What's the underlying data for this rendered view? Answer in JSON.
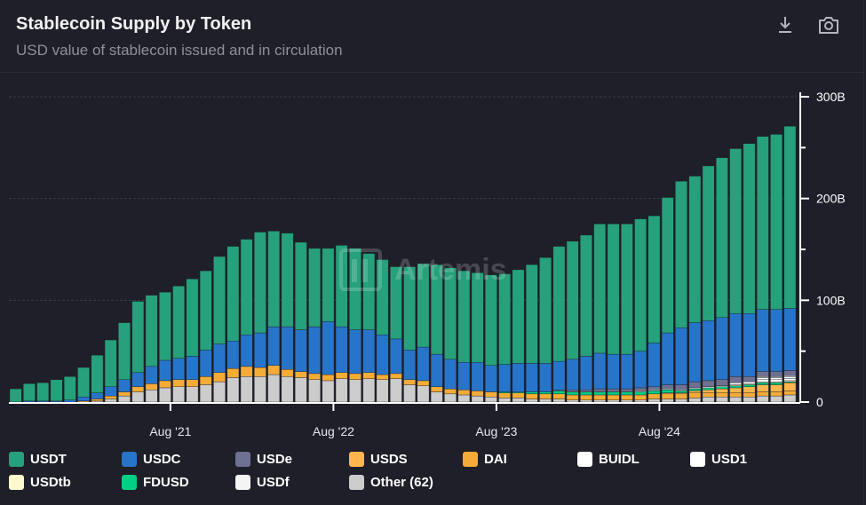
{
  "header": {
    "title": "Stablecoin Supply by Token",
    "subtitle": "USD value of stablecoin issued and in circulation"
  },
  "toolbar": {
    "download_icon": "download-icon",
    "camera_icon": "camera-icon"
  },
  "watermark": "Artemis",
  "chart_data": {
    "type": "bar",
    "stacked": true,
    "title": "Stablecoin Supply by Token",
    "subtitle": "USD value of stablecoin issued and in circulation",
    "xlabel": "",
    "ylabel": "",
    "ylim": [
      0,
      300
    ],
    "y_unit": "B",
    "y_ticks": [
      "0",
      "100B",
      "200B",
      "300B"
    ],
    "x_ticks": [
      "Aug '21",
      "Aug '22",
      "Aug '23",
      "Aug '24"
    ],
    "x_tick_index": [
      11,
      23,
      35,
      47
    ],
    "grid": true,
    "legend_position": "bottom",
    "categories": [
      "Sep '20",
      "Oct '20",
      "Nov '20",
      "Dec '20",
      "Jan '21",
      "Feb '21",
      "Mar '21",
      "Apr '21",
      "May '21",
      "Jun '21",
      "Jul '21",
      "Aug '21",
      "Sep '21",
      "Oct '21",
      "Nov '21",
      "Dec '21",
      "Jan '22",
      "Feb '22",
      "Mar '22",
      "Apr '22",
      "May '22",
      "Jun '22",
      "Jul '22",
      "Aug '22",
      "Sep '22",
      "Oct '22",
      "Nov '22",
      "Dec '22",
      "Jan '23",
      "Feb '23",
      "Mar '23",
      "Apr '23",
      "May '23",
      "Jun '23",
      "Jul '23",
      "Aug '23",
      "Sep '23",
      "Oct '23",
      "Nov '23",
      "Dec '23",
      "Jan '24",
      "Feb '24",
      "Mar '24",
      "Apr '24",
      "May '24",
      "Jun '24",
      "Jul '24",
      "Aug '24",
      "Sep '24",
      "Oct '24",
      "Nov '24",
      "Dec '24",
      "Jan '25",
      "Feb '25",
      "Mar '25",
      "Apr '25",
      "May '25",
      "Jun '25"
    ],
    "series": [
      {
        "name": "Other (62)",
        "color": "#cccccc",
        "values": [
          0,
          0,
          0,
          0,
          0,
          0,
          1,
          3,
          6,
          10,
          12,
          14,
          15,
          15,
          17,
          20,
          24,
          25,
          25,
          27,
          25,
          24,
          22,
          21,
          23,
          22,
          23,
          22,
          23,
          17,
          16,
          10,
          8,
          7,
          6,
          5,
          4,
          4,
          3,
          3,
          3,
          2,
          2,
          2,
          2,
          2,
          2,
          3,
          3,
          3,
          4,
          5,
          5,
          5,
          5,
          6,
          6,
          7
        ]
      },
      {
        "name": "DAI",
        "color": "#f5ac37",
        "values": [
          0,
          0,
          0,
          0,
          0,
          1,
          2,
          3,
          4,
          5,
          6,
          7,
          7,
          7,
          8,
          9,
          9,
          10,
          9,
          9,
          7,
          6,
          6,
          6,
          6,
          6,
          6,
          5,
          5,
          5,
          5,
          5,
          5,
          5,
          5,
          5,
          5,
          5,
          5,
          5,
          5,
          5,
          5,
          5,
          5,
          5,
          5,
          5,
          5,
          5,
          5,
          4,
          4,
          4,
          4,
          4,
          4,
          4
        ]
      },
      {
        "name": "USDS",
        "color": "#ffb74d",
        "values": [
          0,
          0,
          0,
          0,
          0,
          0,
          0,
          0,
          0,
          0,
          0,
          0,
          0,
          0,
          0,
          0,
          0,
          0,
          0,
          0,
          0,
          0,
          0,
          0,
          0,
          0,
          0,
          0,
          0,
          0,
          0,
          0,
          0,
          0,
          0,
          0,
          0,
          0,
          0,
          0,
          0,
          0,
          0,
          0,
          0,
          0,
          0,
          0,
          1,
          1,
          2,
          3,
          4,
          5,
          6,
          7,
          7,
          8
        ]
      },
      {
        "name": "FDUSD",
        "color": "#00d084",
        "values": [
          0,
          0,
          0,
          0,
          0,
          0,
          0,
          0,
          0,
          0,
          0,
          0,
          0,
          0,
          0,
          0,
          0,
          0,
          0,
          0,
          0,
          0,
          0,
          0,
          0,
          0,
          0,
          0,
          0,
          0,
          0,
          0,
          0,
          0,
          0,
          0,
          1,
          1,
          2,
          2,
          3,
          3,
          3,
          3,
          3,
          3,
          3,
          3,
          3,
          2,
          2,
          2,
          2,
          2,
          2,
          2,
          2,
          1
        ]
      },
      {
        "name": "USDtb",
        "color": "#fff8cc",
        "values": [
          0,
          0,
          0,
          0,
          0,
          0,
          0,
          0,
          0,
          0,
          0,
          0,
          0,
          0,
          0,
          0,
          0,
          0,
          0,
          0,
          0,
          0,
          0,
          0,
          0,
          0,
          0,
          0,
          0,
          0,
          0,
          0,
          0,
          0,
          0,
          0,
          0,
          0,
          0,
          0,
          0,
          0,
          0,
          0,
          0,
          0,
          0,
          0,
          0,
          0,
          0,
          0,
          0,
          1,
          1,
          1,
          1,
          1
        ]
      },
      {
        "name": "BUIDL",
        "color": "#ffffff",
        "values": [
          0,
          0,
          0,
          0,
          0,
          0,
          0,
          0,
          0,
          0,
          0,
          0,
          0,
          0,
          0,
          0,
          0,
          0,
          0,
          0,
          0,
          0,
          0,
          0,
          0,
          0,
          0,
          0,
          0,
          0,
          0,
          0,
          0,
          0,
          0,
          0,
          0,
          0,
          0,
          0,
          0,
          0,
          0,
          0,
          0,
          0,
          1,
          1,
          1,
          1,
          1,
          1,
          1,
          2,
          2,
          2,
          2,
          2
        ]
      },
      {
        "name": "USD1",
        "color": "#ffffff",
        "values": [
          0,
          0,
          0,
          0,
          0,
          0,
          0,
          0,
          0,
          0,
          0,
          0,
          0,
          0,
          0,
          0,
          0,
          0,
          0,
          0,
          0,
          0,
          0,
          0,
          0,
          0,
          0,
          0,
          0,
          0,
          0,
          0,
          0,
          0,
          0,
          0,
          0,
          0,
          0,
          0,
          0,
          0,
          0,
          0,
          0,
          0,
          0,
          0,
          0,
          0,
          0,
          0,
          0,
          0,
          0,
          2,
          2,
          2
        ]
      },
      {
        "name": "USDf",
        "color": "#f4f4f4",
        "values": [
          0,
          0,
          0,
          0,
          0,
          0,
          0,
          0,
          0,
          0,
          0,
          0,
          0,
          0,
          0,
          0,
          0,
          0,
          0,
          0,
          0,
          0,
          0,
          0,
          0,
          0,
          0,
          0,
          0,
          0,
          0,
          0,
          0,
          0,
          0,
          0,
          0,
          0,
          0,
          0,
          0,
          0,
          0,
          0,
          0,
          0,
          0,
          0,
          0,
          0,
          0,
          0,
          0,
          0,
          0,
          1,
          1,
          1
        ]
      },
      {
        "name": "USDe",
        "color": "#6f7192",
        "values": [
          0,
          0,
          0,
          0,
          0,
          0,
          0,
          0,
          0,
          0,
          0,
          0,
          0,
          0,
          0,
          0,
          0,
          0,
          0,
          0,
          0,
          0,
          0,
          0,
          0,
          0,
          0,
          0,
          0,
          0,
          0,
          0,
          0,
          0,
          0,
          0,
          0,
          0,
          0,
          0,
          1,
          2,
          2,
          3,
          3,
          3,
          3,
          3,
          4,
          5,
          6,
          6,
          6,
          6,
          5,
          5,
          5,
          5
        ]
      },
      {
        "name": "USDC",
        "color": "#2775ca",
        "values": [
          0,
          1,
          1,
          1,
          2,
          4,
          6,
          9,
          12,
          14,
          17,
          20,
          21,
          23,
          26,
          28,
          27,
          31,
          34,
          38,
          42,
          41,
          46,
          52,
          45,
          43,
          42,
          39,
          34,
          29,
          33,
          32,
          29,
          27,
          28,
          26,
          27,
          28,
          28,
          28,
          28,
          30,
          33,
          35,
          34,
          34,
          36,
          43,
          51,
          56,
          58,
          59,
          61,
          62,
          62,
          61,
          61,
          61
        ]
      },
      {
        "name": "USDT",
        "color": "#26a17b",
        "values": [
          13,
          17,
          18,
          21,
          23,
          29,
          37,
          46,
          56,
          70,
          70,
          67,
          71,
          76,
          78,
          86,
          93,
          94,
          99,
          94,
          92,
          86,
          77,
          72,
          80,
          80,
          75,
          74,
          71,
          82,
          82,
          88,
          90,
          90,
          88,
          89,
          89,
          92,
          97,
          104,
          113,
          116,
          119,
          127,
          128,
          128,
          130,
          125,
          133,
          144,
          144,
          152,
          157,
          162,
          167,
          170,
          172,
          179
        ]
      }
    ]
  },
  "legend": {
    "items": [
      {
        "label": "USDT",
        "color": "#26a17b"
      },
      {
        "label": "USDC",
        "color": "#2775ca"
      },
      {
        "label": "USDe",
        "color": "#6f7192"
      },
      {
        "label": "USDS",
        "color": "#ffb74d"
      },
      {
        "label": "DAI",
        "color": "#f5ac37"
      },
      {
        "label": "BUIDL",
        "color": "#ffffff"
      },
      {
        "label": "USD1",
        "color": "#ffffff"
      },
      {
        "label": "USDtb",
        "color": "#fff8cc"
      },
      {
        "label": "FDUSD",
        "color": "#00d084"
      },
      {
        "label": "USDf",
        "color": "#f4f4f4"
      },
      {
        "label": "Other (62)",
        "color": "#cccccc"
      }
    ]
  }
}
